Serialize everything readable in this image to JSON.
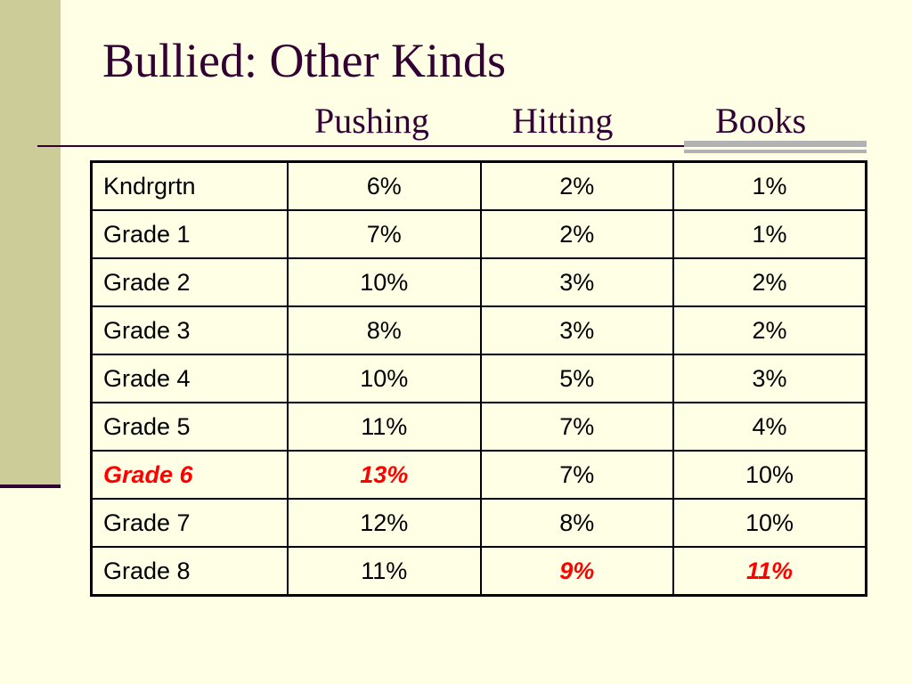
{
  "slide": {
    "title": "Bullied: Other Kinds",
    "column_headers": [
      "Pushing",
      "Hitting",
      "Books"
    ]
  },
  "chart_data": {
    "type": "table",
    "title": "Bullied: Other Kinds",
    "columns": [
      "",
      "Pushing",
      "Hitting",
      "Books"
    ],
    "rows": [
      {
        "label": "Kndrgrtn",
        "pushing": "6%",
        "hitting": "2%",
        "books": "1%"
      },
      {
        "label": "Grade 1",
        "pushing": "7%",
        "hitting": "2%",
        "books": "1%"
      },
      {
        "label": "Grade 2",
        "pushing": "10%",
        "hitting": "3%",
        "books": "2%"
      },
      {
        "label": "Grade 3",
        "pushing": "8%",
        "hitting": "3%",
        "books": "2%"
      },
      {
        "label": "Grade 4",
        "pushing": "10%",
        "hitting": "5%",
        "books": "3%"
      },
      {
        "label": "Grade 5",
        "pushing": "11%",
        "hitting": "7%",
        "books": "4%"
      },
      {
        "label": "Grade 6",
        "pushing": "13%",
        "hitting": "7%",
        "books": "10%"
      },
      {
        "label": "Grade 7",
        "pushing": "12%",
        "hitting": "8%",
        "books": "10%"
      },
      {
        "label": "Grade 8",
        "pushing": "11%",
        "hitting": "9%",
        "books": "11%"
      }
    ],
    "highlighted_cells": [
      {
        "row": "Grade 6",
        "column": "label"
      },
      {
        "row": "Grade 6",
        "column": "Pushing"
      },
      {
        "row": "Grade 8",
        "column": "Hitting"
      },
      {
        "row": "Grade 8",
        "column": "Books"
      }
    ],
    "highlight_color": "#FF0000"
  },
  "colors": {
    "background": "#FFFFE5",
    "title": "#330033",
    "side_bar": "#CCCC99",
    "accent_rule": "#B2B2B2",
    "highlight": "#FF0000"
  }
}
